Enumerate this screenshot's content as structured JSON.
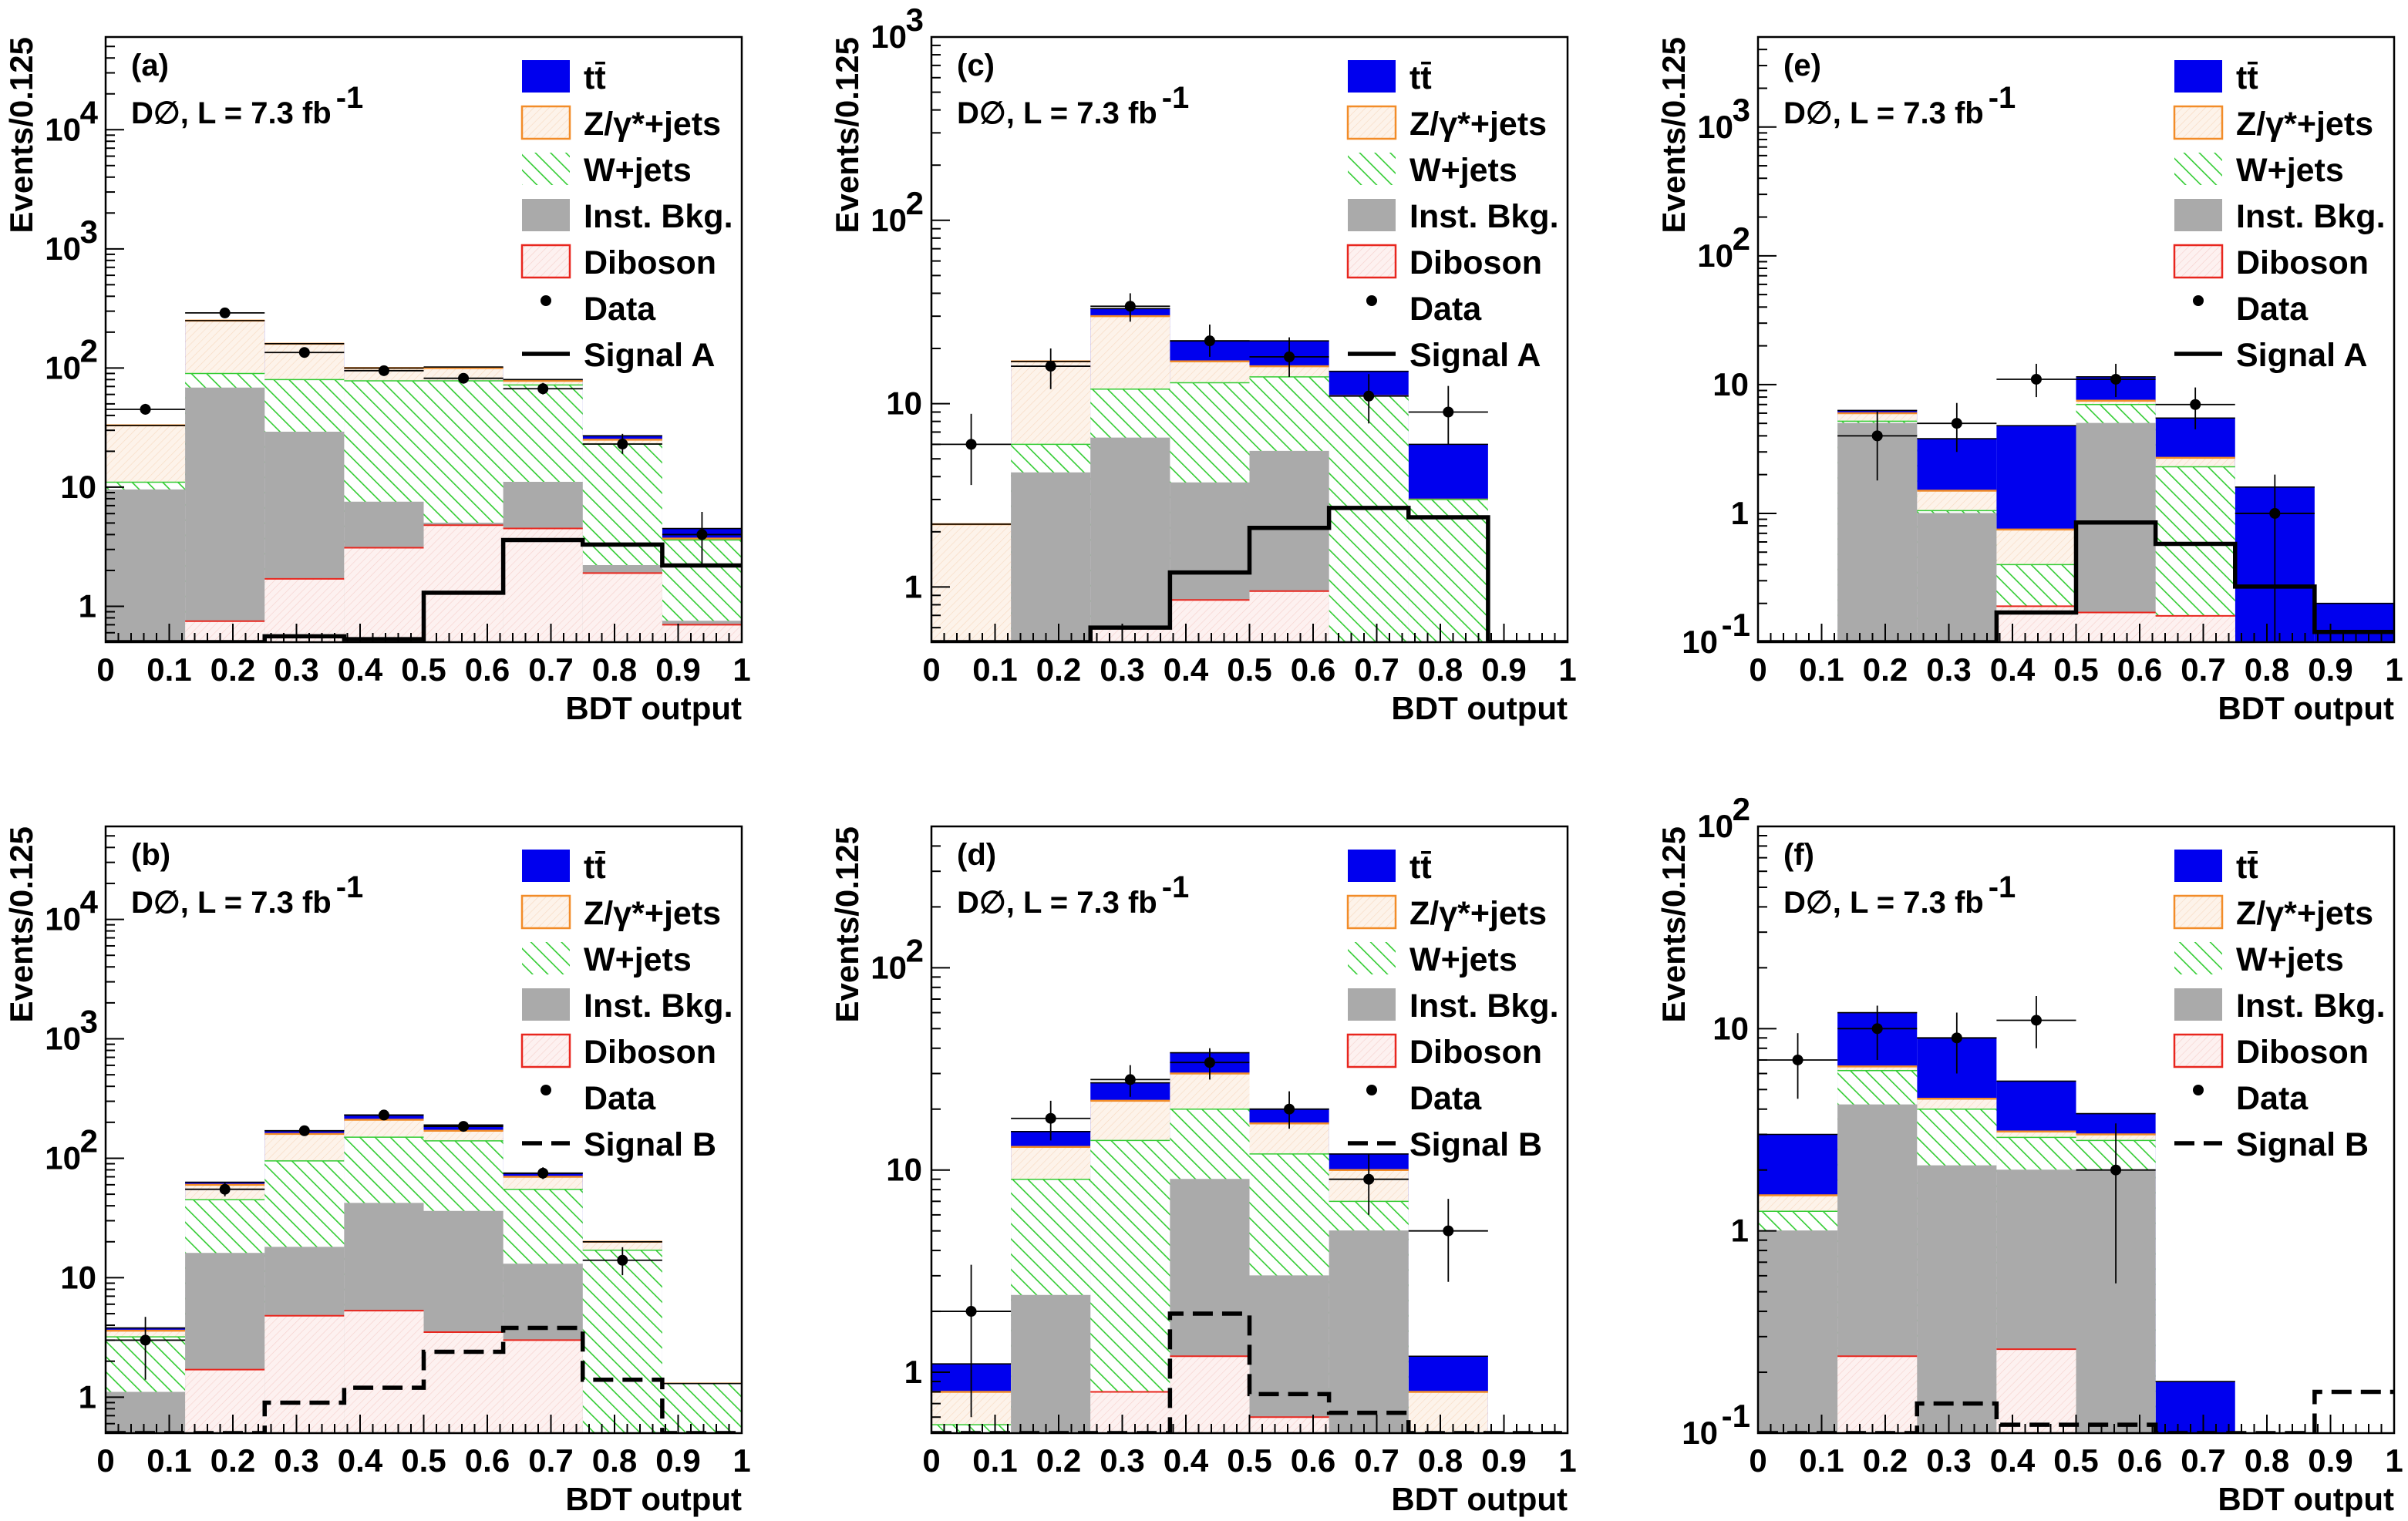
{
  "legend_labels": {
    "ttbar": "tt̄",
    "zjets": "Z/γ*+jets",
    "wjets": "W+jets",
    "inst": "Inst. Bkg.",
    "diboson": "Diboson",
    "data": "Data"
  },
  "colors": {
    "ttbar": "#0000ee",
    "zjets_line": "#f28c28",
    "zjets_fill": "#fdeee2",
    "wjets_line": "#33cc33",
    "inst": "#aaaaaa",
    "diboson_line": "#e8261e",
    "diboson_fill": "#fbe3e1"
  },
  "chart_data": [
    {
      "type": "bar",
      "panel": "(a)",
      "experiment": "D∅, L = 7.3 fb",
      "lumi_exponent": "-1",
      "title": "",
      "xlabel": "BDT output",
      "ylabel": "Events/0.125",
      "log_y": true,
      "ylim": [
        0.5,
        60000
      ],
      "xlim": [
        0,
        1
      ],
      "x_ticks": [
        "0",
        "0.1",
        "0.2",
        "0.3",
        "0.4",
        "0.5",
        "0.6",
        "0.7",
        "0.8",
        "0.9",
        "1"
      ],
      "y_ticks": [
        {
          "v": 1,
          "label": "1"
        },
        {
          "v": 10,
          "label": "10"
        },
        {
          "v": 100,
          "label": "10",
          "exp": "2"
        },
        {
          "v": 1000,
          "label": "10",
          "exp": "3"
        },
        {
          "v": 10000,
          "label": "10",
          "exp": "4"
        }
      ],
      "bin_edges": [
        0,
        0.125,
        0.25,
        0.375,
        0.5,
        0.625,
        0.75,
        0.875,
        1
      ],
      "signal_label": "Signal A",
      "signal_style": "solid",
      "stack_cumulative": {
        "diboson": [
          0.5,
          0.75,
          1.7,
          3.1,
          4.8,
          4.5,
          1.9,
          0.7
        ],
        "inst": [
          9.5,
          68,
          29,
          7.5,
          5,
          11,
          2.2,
          0.75
        ],
        "wjets": [
          11,
          90,
          80,
          78,
          78,
          72,
          23,
          3.6
        ],
        "zjets": [
          33,
          250,
          160,
          100,
          100,
          78,
          25,
          3.7
        ],
        "ttbar": [
          33,
          250,
          160,
          100,
          102,
          80,
          27,
          4.5
        ]
      },
      "signal": [
        0.5,
        0.5,
        0.56,
        0.53,
        1.3,
        3.6,
        3.3,
        2.2
      ],
      "data": [
        {
          "x": 0.0625,
          "y": 45,
          "lo": 41,
          "hi": 50
        },
        {
          "x": 0.1875,
          "y": 290,
          "lo": 280,
          "hi": 300
        },
        {
          "x": 0.3125,
          "y": 135,
          "lo": 125,
          "hi": 145
        },
        {
          "x": 0.4375,
          "y": 95,
          "lo": 87,
          "hi": 104
        },
        {
          "x": 0.5625,
          "y": 82,
          "lo": 75,
          "hi": 90
        },
        {
          "x": 0.6875,
          "y": 67,
          "lo": 60,
          "hi": 75
        },
        {
          "x": 0.8125,
          "y": 23,
          "lo": 19,
          "hi": 28
        },
        {
          "x": 0.9375,
          "y": 4,
          "lo": 2.2,
          "hi": 6.2
        }
      ]
    },
    {
      "type": "bar",
      "panel": "(c)",
      "experiment": "D∅, L = 7.3 fb",
      "lumi_exponent": "-1",
      "title": "",
      "xlabel": "BDT output",
      "ylabel": "Events/0.125",
      "log_y": true,
      "ylim": [
        0.5,
        1000
      ],
      "xlim": [
        0,
        1
      ],
      "x_ticks": [
        "0",
        "0.1",
        "0.2",
        "0.3",
        "0.4",
        "0.5",
        "0.6",
        "0.7",
        "0.8",
        "0.9",
        "1"
      ],
      "y_ticks": [
        {
          "v": 1,
          "label": "1"
        },
        {
          "v": 10,
          "label": "10"
        },
        {
          "v": 100,
          "label": "10",
          "exp": "2"
        },
        {
          "v": 1000,
          "label": "10",
          "exp": "3"
        }
      ],
      "bin_edges": [
        0,
        0.125,
        0.25,
        0.375,
        0.5,
        0.625,
        0.75,
        0.875,
        1
      ],
      "signal_label": "Signal A",
      "signal_style": "solid",
      "stack_cumulative": {
        "diboson": [
          0.5,
          0.5,
          0.6,
          0.85,
          0.95,
          0.5,
          0.5,
          0.5
        ],
        "inst": [
          0.5,
          4.2,
          6.5,
          3.7,
          5.5,
          0.5,
          0.5,
          0.5
        ],
        "wjets": [
          0.5,
          6,
          12,
          13,
          14,
          11,
          3,
          0.5
        ],
        "zjets": [
          2.2,
          17,
          30,
          17,
          16,
          11,
          3,
          0.5
        ],
        "ttbar": [
          2.2,
          17,
          33,
          22,
          22,
          15,
          6,
          0.5
        ]
      },
      "signal": [
        0.5,
        0.5,
        0.6,
        1.2,
        2.1,
        2.7,
        2.4,
        0.5
      ],
      "data": [
        {
          "x": 0.0625,
          "y": 6,
          "lo": 3.6,
          "hi": 8.8
        },
        {
          "x": 0.1875,
          "y": 16,
          "lo": 12,
          "hi": 20
        },
        {
          "x": 0.3125,
          "y": 34,
          "lo": 28,
          "hi": 40
        },
        {
          "x": 0.4375,
          "y": 22,
          "lo": 18,
          "hi": 27
        },
        {
          "x": 0.5625,
          "y": 18,
          "lo": 14,
          "hi": 23
        },
        {
          "x": 0.6875,
          "y": 11,
          "lo": 7.8,
          "hi": 14.5
        },
        {
          "x": 0.8125,
          "y": 9,
          "lo": 6,
          "hi": 12.5
        }
      ]
    },
    {
      "type": "bar",
      "panel": "(e)",
      "experiment": "D∅, L = 7.3 fb",
      "lumi_exponent": "-1",
      "title": "",
      "xlabel": "BDT output",
      "ylabel": "Events/0.125",
      "log_y": true,
      "ylim": [
        0.1,
        5000
      ],
      "xlim": [
        0,
        1
      ],
      "x_ticks": [
        "0",
        "0.1",
        "0.2",
        "0.3",
        "0.4",
        "0.5",
        "0.6",
        "0.7",
        "0.8",
        "0.9",
        "1"
      ],
      "y_ticks": [
        {
          "v": 0.1,
          "label": "10",
          "exp": "-1"
        },
        {
          "v": 1,
          "label": "1"
        },
        {
          "v": 10,
          "label": "10"
        },
        {
          "v": 100,
          "label": "10",
          "exp": "2"
        },
        {
          "v": 1000,
          "label": "10",
          "exp": "3"
        }
      ],
      "bin_edges": [
        0,
        0.125,
        0.25,
        0.375,
        0.5,
        0.625,
        0.75,
        0.875,
        1
      ],
      "signal_label": "Signal A",
      "signal_style": "solid",
      "stack_cumulative": {
        "diboson": [
          0.1,
          0.1,
          0.1,
          0.19,
          0.17,
          0.16,
          0.1,
          0.1
        ],
        "inst": [
          0.1,
          5,
          1,
          0.1,
          5,
          0.1,
          0.1,
          0.1
        ],
        "wjets": [
          0.1,
          5.2,
          1.05,
          0.4,
          7,
          2.3,
          0.1,
          0.1
        ],
        "zjets": [
          0.1,
          6,
          1.5,
          0.75,
          7.5,
          2.7,
          0.1,
          0.1
        ],
        "ttbar": [
          0.1,
          6.3,
          3.8,
          4.8,
          11.5,
          5.5,
          1.6,
          0.2
        ]
      },
      "signal": [
        0.1,
        0.1,
        0.1,
        0.17,
        0.85,
        0.58,
        0.27,
        0.12
      ],
      "data": [
        {
          "x": 0.1875,
          "y": 4,
          "lo": 1.8,
          "hi": 6.2
        },
        {
          "x": 0.3125,
          "y": 5,
          "lo": 3,
          "hi": 7.2
        },
        {
          "x": 0.4375,
          "y": 11,
          "lo": 8,
          "hi": 14.5
        },
        {
          "x": 0.5625,
          "y": 11,
          "lo": 8,
          "hi": 14.5
        },
        {
          "x": 0.6875,
          "y": 7,
          "lo": 4.5,
          "hi": 9.5
        },
        {
          "x": 0.8125,
          "y": 1,
          "lo": 0.1,
          "hi": 2
        }
      ]
    },
    {
      "type": "bar",
      "panel": "(b)",
      "experiment": "D∅, L = 7.3 fb",
      "lumi_exponent": "-1",
      "title": "",
      "xlabel": "BDT output",
      "ylabel": "Events/0.125",
      "log_y": true,
      "ylim": [
        0.5,
        60000
      ],
      "xlim": [
        0,
        1
      ],
      "x_ticks": [
        "0",
        "0.1",
        "0.2",
        "0.3",
        "0.4",
        "0.5",
        "0.6",
        "0.7",
        "0.8",
        "0.9",
        "1"
      ],
      "y_ticks": [
        {
          "v": 1,
          "label": "1"
        },
        {
          "v": 10,
          "label": "10"
        },
        {
          "v": 100,
          "label": "10",
          "exp": "2"
        },
        {
          "v": 1000,
          "label": "10",
          "exp": "3"
        },
        {
          "v": 10000,
          "label": "10",
          "exp": "4"
        }
      ],
      "bin_edges": [
        0,
        0.125,
        0.25,
        0.375,
        0.5,
        0.625,
        0.75,
        0.875,
        1
      ],
      "signal_label": "Signal B",
      "signal_style": "dashed",
      "stack_cumulative": {
        "diboson": [
          0.5,
          1.7,
          4.8,
          5.3,
          3.5,
          3,
          0.5,
          0.5
        ],
        "inst": [
          1.1,
          16,
          18,
          42,
          36,
          13,
          0.5,
          0.5
        ],
        "wjets": [
          3.2,
          45,
          95,
          150,
          140,
          55,
          17,
          1.3
        ],
        "zjets": [
          3.6,
          60,
          160,
          210,
          170,
          70,
          20,
          1.3
        ],
        "ttbar": [
          3.8,
          63,
          170,
          230,
          190,
          75,
          20,
          1.3
        ]
      },
      "signal": [
        0.5,
        0.5,
        0.9,
        1.2,
        2.4,
        3.8,
        1.4,
        0.5
      ],
      "data": [
        {
          "x": 0.0625,
          "y": 3,
          "lo": 1.4,
          "hi": 4.7
        },
        {
          "x": 0.1875,
          "y": 55,
          "lo": 48,
          "hi": 63
        },
        {
          "x": 0.3125,
          "y": 170,
          "lo": 158,
          "hi": 183
        },
        {
          "x": 0.4375,
          "y": 230,
          "lo": 215,
          "hi": 245
        },
        {
          "x": 0.5625,
          "y": 185,
          "lo": 172,
          "hi": 198
        },
        {
          "x": 0.6875,
          "y": 75,
          "lo": 67,
          "hi": 84
        },
        {
          "x": 0.8125,
          "y": 14,
          "lo": 10.5,
          "hi": 18
        }
      ]
    },
    {
      "type": "bar",
      "panel": "(d)",
      "experiment": "D∅, L = 7.3 fb",
      "lumi_exponent": "-1",
      "title": "",
      "xlabel": "BDT output",
      "ylabel": "Events/0.125",
      "log_y": true,
      "ylim": [
        0.5,
        500
      ],
      "xlim": [
        0,
        1
      ],
      "x_ticks": [
        "0",
        "0.1",
        "0.2",
        "0.3",
        "0.4",
        "0.5",
        "0.6",
        "0.7",
        "0.8",
        "0.9",
        "1"
      ],
      "y_ticks": [
        {
          "v": 1,
          "label": "1"
        },
        {
          "v": 10,
          "label": "10"
        },
        {
          "v": 100,
          "label": "10",
          "exp": "2"
        }
      ],
      "bin_edges": [
        0,
        0.125,
        0.25,
        0.375,
        0.5,
        0.625,
        0.75,
        0.875,
        1
      ],
      "signal_label": "Signal B",
      "signal_style": "dashed",
      "stack_cumulative": {
        "diboson": [
          0.5,
          0.5,
          0.8,
          1.2,
          0.6,
          0.5,
          0.5,
          0.5
        ],
        "inst": [
          0.5,
          2.4,
          0.5,
          9,
          3,
          5,
          0.5,
          0.5
        ],
        "wjets": [
          0.55,
          9,
          14,
          20,
          12,
          7,
          0.5,
          0.5
        ],
        "zjets": [
          0.8,
          13,
          22,
          30,
          17,
          10,
          0.8,
          0.5
        ],
        "ttbar": [
          1.1,
          15.5,
          27,
          38,
          20,
          12,
          1.2,
          0.5
        ]
      },
      "signal": [
        0.5,
        0.5,
        0.5,
        1.95,
        0.78,
        0.63,
        0.5,
        0.5
      ],
      "data": [
        {
          "x": 0.0625,
          "y": 2,
          "lo": 0.6,
          "hi": 3.4
        },
        {
          "x": 0.1875,
          "y": 18,
          "lo": 14,
          "hi": 22
        },
        {
          "x": 0.3125,
          "y": 28,
          "lo": 23,
          "hi": 33
        },
        {
          "x": 0.4375,
          "y": 34,
          "lo": 28,
          "hi": 40
        },
        {
          "x": 0.5625,
          "y": 20,
          "lo": 16,
          "hi": 24.5
        },
        {
          "x": 0.6875,
          "y": 9,
          "lo": 6,
          "hi": 12
        },
        {
          "x": 0.8125,
          "y": 5,
          "lo": 2.8,
          "hi": 7.2
        }
      ]
    },
    {
      "type": "bar",
      "panel": "(f)",
      "experiment": "D∅, L = 7.3 fb",
      "lumi_exponent": "-1",
      "title": "",
      "xlabel": "BDT output",
      "ylabel": "Events/0.125",
      "log_y": true,
      "ylim": [
        0.1,
        100
      ],
      "xlim": [
        0,
        1
      ],
      "x_ticks": [
        "0",
        "0.1",
        "0.2",
        "0.3",
        "0.4",
        "0.5",
        "0.6",
        "0.7",
        "0.8",
        "0.9",
        "1"
      ],
      "y_ticks": [
        {
          "v": 0.1,
          "label": "10",
          "exp": "-1"
        },
        {
          "v": 1,
          "label": "1"
        },
        {
          "v": 10,
          "label": "10"
        },
        {
          "v": 100,
          "label": "10",
          "exp": "2"
        }
      ],
      "bin_edges": [
        0,
        0.125,
        0.25,
        0.375,
        0.5,
        0.625,
        0.75,
        0.875,
        1
      ],
      "signal_label": "Signal B",
      "signal_style": "dashed",
      "stack_cumulative": {
        "diboson": [
          0.1,
          0.24,
          0.1,
          0.26,
          0.1,
          0.1,
          0.1,
          0.1
        ],
        "inst": [
          1,
          4.2,
          2.1,
          2,
          2,
          0.1,
          0.1,
          0.1
        ],
        "wjets": [
          1.25,
          6.2,
          4,
          2.9,
          2.8,
          0.1,
          0.1,
          0.1
        ],
        "zjets": [
          1.5,
          6.5,
          4.5,
          3.1,
          3,
          0.1,
          0.1,
          0.1
        ],
        "ttbar": [
          3,
          12,
          9,
          5.5,
          3.8,
          0.18,
          0.1,
          0.1
        ]
      },
      "signal": [
        0.1,
        0.1,
        0.14,
        0.11,
        0.11,
        0.1,
        0.1,
        0.16
      ],
      "data": [
        {
          "x": 0.0625,
          "y": 7,
          "lo": 4.5,
          "hi": 9.5
        },
        {
          "x": 0.1875,
          "y": 10,
          "lo": 7,
          "hi": 13
        },
        {
          "x": 0.3125,
          "y": 9,
          "lo": 6,
          "hi": 12
        },
        {
          "x": 0.4375,
          "y": 11,
          "lo": 8,
          "hi": 14.5
        },
        {
          "x": 0.5625,
          "y": 2,
          "lo": 0.55,
          "hi": 3.4
        }
      ]
    }
  ]
}
